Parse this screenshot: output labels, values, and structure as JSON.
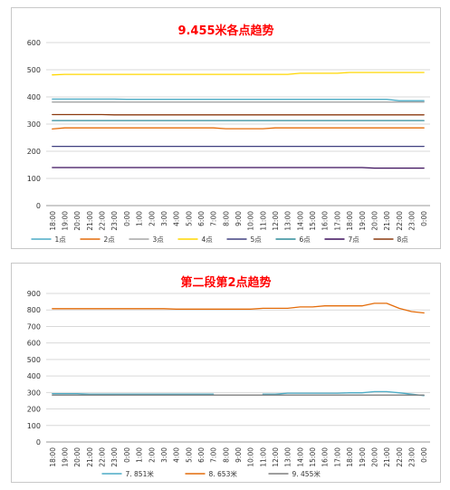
{
  "chart_data": [
    {
      "type": "line",
      "title": "9.455米各点趋势",
      "xlabel": "",
      "ylabel": "",
      "ylim": [
        0,
        600
      ],
      "yticks": [
        0,
        100,
        200,
        300,
        400,
        500,
        600
      ],
      "grid": true,
      "legend": "bottom",
      "categories": [
        "18:00",
        "19:00",
        "20:00",
        "21:00",
        "22:00",
        "23:00",
        "0:00",
        "1:00",
        "2:00",
        "3:00",
        "4:00",
        "5:00",
        "6:00",
        "7:00",
        "8:00",
        "9:00",
        "10:00",
        "11:00",
        "12:00",
        "13:00",
        "14:00",
        "15:00",
        "16:00",
        "17:00",
        "18:00",
        "19:00",
        "20:00",
        "21:00",
        "22:00",
        "23:00",
        "0:00"
      ],
      "series": [
        {
          "name": "1点",
          "color": "#4bacc6",
          "values": [
            392,
            392,
            392,
            392,
            392,
            392,
            391,
            391,
            391,
            391,
            391,
            391,
            391,
            391,
            391,
            391,
            391,
            391,
            391,
            391,
            391,
            391,
            391,
            391,
            391,
            391,
            391,
            391,
            386,
            386,
            386
          ]
        },
        {
          "name": "2点",
          "color": "#e46c0a",
          "values": [
            282,
            286,
            286,
            286,
            286,
            286,
            286,
            286,
            286,
            286,
            286,
            286,
            286,
            286,
            283,
            283,
            283,
            283,
            286,
            286,
            286,
            286,
            286,
            286,
            286,
            286,
            286,
            286,
            286,
            286,
            286
          ]
        },
        {
          "name": "3点",
          "color": "#a5a5a5",
          "values": [
            381,
            381,
            381,
            381,
            381,
            381,
            381,
            381,
            381,
            381,
            381,
            381,
            381,
            381,
            381,
            381,
            381,
            381,
            381,
            381,
            381,
            381,
            381,
            381,
            381,
            381,
            381,
            381,
            381,
            381,
            381
          ]
        },
        {
          "name": "4点",
          "color": "#ffd700",
          "values": [
            481,
            483,
            483,
            483,
            483,
            483,
            483,
            483,
            483,
            483,
            483,
            483,
            483,
            483,
            483,
            483,
            483,
            483,
            483,
            483,
            487,
            487,
            487,
            487,
            490,
            490,
            490,
            490,
            490,
            490,
            490
          ]
        },
        {
          "name": "5点",
          "color": "#404080",
          "values": [
            218,
            218,
            218,
            218,
            218,
            218,
            218,
            218,
            218,
            218,
            218,
            218,
            218,
            218,
            218,
            218,
            218,
            218,
            218,
            218,
            218,
            218,
            218,
            218,
            218,
            218,
            218,
            218,
            218,
            218,
            218
          ]
        },
        {
          "name": "6点",
          "color": "#2e8b9a",
          "values": [
            313,
            313,
            313,
            313,
            313,
            313,
            313,
            313,
            313,
            313,
            313,
            313,
            313,
            313,
            313,
            313,
            313,
            313,
            313,
            313,
            313,
            313,
            313,
            313,
            313,
            313,
            313,
            313,
            313,
            313,
            313
          ]
        },
        {
          "name": "7点",
          "color": "#3b0f5c",
          "values": [
            140,
            140,
            140,
            140,
            140,
            140,
            140,
            140,
            140,
            140,
            140,
            140,
            140,
            140,
            140,
            140,
            140,
            140,
            140,
            140,
            140,
            140,
            140,
            140,
            140,
            140,
            138,
            138,
            138,
            138,
            138
          ]
        },
        {
          "name": "8点",
          "color": "#8b3a0f",
          "values": [
            335,
            335,
            335,
            335,
            335,
            334,
            334,
            334,
            334,
            334,
            334,
            334,
            334,
            334,
            334,
            334,
            334,
            334,
            334,
            334,
            334,
            334,
            334,
            334,
            334,
            334,
            334,
            334,
            334,
            334,
            334
          ]
        }
      ]
    },
    {
      "type": "line",
      "title": "第二段第2点趋势",
      "xlabel": "",
      "ylabel": "",
      "ylim": [
        0,
        900
      ],
      "yticks": [
        0,
        100,
        200,
        300,
        400,
        500,
        600,
        700,
        800,
        900
      ],
      "grid": true,
      "legend": "bottom",
      "categories": [
        "18:00",
        "19:00",
        "20:00",
        "21:00",
        "22:00",
        "23:00",
        "0:00",
        "1:00",
        "2:00",
        "3:00",
        "4:00",
        "5:00",
        "6:00",
        "7:00",
        "8:00",
        "9:00",
        "10:00",
        "11:00",
        "12:00",
        "13:00",
        "14:00",
        "15:00",
        "16:00",
        "17:00",
        "18:00",
        "19:00",
        "20:00",
        "21:00",
        "22:00",
        "23:00",
        "0:00"
      ],
      "series": [
        {
          "name": "7. 851米",
          "color": "#4bacc6",
          "values": [
            293,
            293,
            293,
            290,
            290,
            290,
            290,
            290,
            290,
            290,
            290,
            290,
            290,
            290,
            null,
            null,
            null,
            290,
            290,
            296,
            296,
            296,
            296,
            296,
            298,
            298,
            305,
            305,
            298,
            290,
            281
          ]
        },
        {
          "name": "8. 653米",
          "color": "#e46c0a",
          "values": [
            808,
            808,
            808,
            808,
            808,
            808,
            808,
            808,
            808,
            808,
            805,
            805,
            805,
            805,
            805,
            805,
            805,
            810,
            810,
            810,
            818,
            818,
            825,
            825,
            825,
            825,
            840,
            840,
            810,
            790,
            782
          ]
        },
        {
          "name": "9. 455米",
          "color": "#7f7f7f",
          "values": [
            284,
            284,
            284,
            284,
            284,
            284,
            284,
            284,
            284,
            284,
            284,
            284,
            284,
            284,
            284,
            284,
            284,
            284,
            284,
            284,
            284,
            284,
            284,
            284,
            284,
            284,
            284,
            284,
            284,
            284,
            284
          ]
        }
      ]
    }
  ]
}
